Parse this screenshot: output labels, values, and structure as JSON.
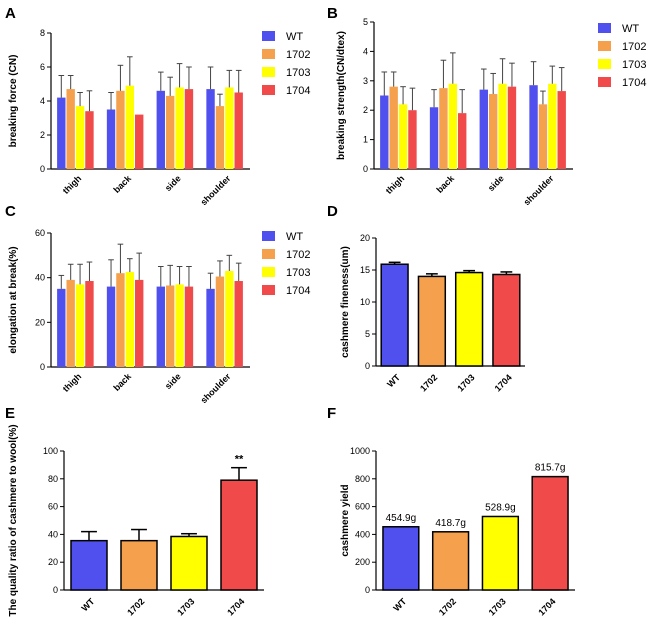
{
  "figure": {
    "panel_letters": [
      "A",
      "B",
      "C",
      "D",
      "E",
      "F"
    ]
  },
  "colors": {
    "WT": "#5050ee",
    "1702": "#f5a04c",
    "1703": "#ffff00",
    "1704": "#f04a4a"
  },
  "chart_data": [
    {
      "panel": "A",
      "type": "bar",
      "ylabel": "breaking force (CN)",
      "ylim": [
        0,
        8
      ],
      "yticks": [
        "0",
        "2",
        "4",
        "6",
        "8"
      ],
      "categories": [
        "thigh",
        "back",
        "side",
        "shoulder"
      ],
      "legend": [
        "WT",
        "1702",
        "1703",
        "1704"
      ],
      "series": [
        {
          "name": "WT",
          "values": [
            4.2,
            3.5,
            4.6,
            4.7
          ],
          "errors": [
            1.3,
            1.0,
            1.1,
            1.3
          ]
        },
        {
          "name": "1702",
          "values": [
            4.7,
            4.6,
            4.3,
            3.7
          ],
          "errors": [
            0.8,
            1.5,
            1.1,
            0.7
          ]
        },
        {
          "name": "1703",
          "values": [
            3.7,
            4.9,
            4.8,
            4.8
          ],
          "errors": [
            0.8,
            1.7,
            1.4,
            1.0
          ]
        },
        {
          "name": "1704",
          "values": [
            3.4,
            3.2,
            4.7,
            4.5
          ],
          "errors": [
            1.2,
            0,
            1.3,
            1.3
          ]
        }
      ]
    },
    {
      "panel": "B",
      "type": "bar",
      "ylabel": "breaking strength(CN/dtex)",
      "ylim": [
        0,
        5
      ],
      "yticks": [
        "0",
        "1",
        "2",
        "3",
        "4",
        "5"
      ],
      "categories": [
        "thigh",
        "back",
        "side",
        "shoulder"
      ],
      "legend": [
        "WT",
        "1702",
        "1703",
        "1704"
      ],
      "series": [
        {
          "name": "WT",
          "values": [
            2.5,
            2.1,
            2.7,
            2.85
          ],
          "errors": [
            0.8,
            0.6,
            0.7,
            0.8
          ]
        },
        {
          "name": "1702",
          "values": [
            2.8,
            2.75,
            2.55,
            2.2
          ],
          "errors": [
            0.5,
            0.95,
            0.7,
            0.45
          ]
        },
        {
          "name": "1703",
          "values": [
            2.2,
            2.9,
            2.9,
            2.9
          ],
          "errors": [
            0.6,
            1.05,
            0.85,
            0.6
          ]
        },
        {
          "name": "1704",
          "values": [
            2.0,
            1.9,
            2.8,
            2.65
          ],
          "errors": [
            0.75,
            0.8,
            0.8,
            0.8
          ]
        }
      ]
    },
    {
      "panel": "C",
      "type": "bar",
      "ylabel": "elongation at break(%)",
      "ylim": [
        0,
        60
      ],
      "yticks": [
        "0",
        "20",
        "40",
        "60"
      ],
      "categories": [
        "thigh",
        "back",
        "side",
        "shoulder"
      ],
      "legend": [
        "WT",
        "1702",
        "1703",
        "1704"
      ],
      "series": [
        {
          "name": "WT",
          "values": [
            35,
            36,
            36,
            35
          ],
          "errors": [
            6,
            12,
            9,
            7
          ]
        },
        {
          "name": "1702",
          "values": [
            39,
            42,
            36.5,
            40.5
          ],
          "errors": [
            7,
            13,
            9,
            7
          ]
        },
        {
          "name": "1703",
          "values": [
            37,
            42.5,
            37,
            43
          ],
          "errors": [
            9,
            6,
            8,
            7
          ]
        },
        {
          "name": "1704",
          "values": [
            38.5,
            39,
            36,
            38.5
          ],
          "errors": [
            8.5,
            12,
            9,
            8
          ]
        }
      ]
    },
    {
      "panel": "D",
      "type": "bar",
      "ylabel": "cashmere fineness(um)",
      "ylim": [
        0,
        20
      ],
      "yticks": [
        "0",
        "5",
        "10",
        "15",
        "20"
      ],
      "categories": [
        "WT",
        "1702",
        "1703",
        "1704"
      ],
      "values": [
        15.9,
        14.0,
        14.6,
        14.3
      ],
      "errors": [
        0.3,
        0.4,
        0.3,
        0.4
      ]
    },
    {
      "panel": "E",
      "type": "bar",
      "ylabel": "The quality ratio of cashmere to wool(%)",
      "ylim": [
        0,
        100
      ],
      "yticks": [
        "0",
        "20",
        "40",
        "60",
        "80",
        "100"
      ],
      "categories": [
        "WT",
        "1702",
        "1703",
        "1704"
      ],
      "values": [
        35.5,
        35.5,
        38.5,
        79
      ],
      "errors": [
        6.5,
        8,
        2,
        9
      ],
      "annotation": {
        "category": "1704",
        "text": "**"
      }
    },
    {
      "panel": "F",
      "type": "bar",
      "ylabel": "cashmere yield",
      "ylim": [
        0,
        1000
      ],
      "yticks": [
        "0",
        "200",
        "400",
        "600",
        "800",
        "1000"
      ],
      "categories": [
        "WT",
        "1702",
        "1703",
        "1704"
      ],
      "values": [
        454.9,
        418.7,
        528.9,
        815.7
      ],
      "data_labels": [
        "454.9g",
        "418.7g",
        "528.9g",
        "815.7g"
      ]
    }
  ]
}
